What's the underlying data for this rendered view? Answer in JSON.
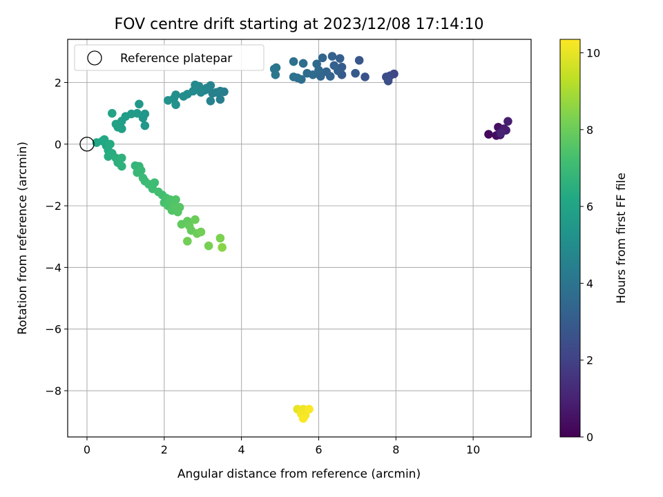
{
  "chart_data": {
    "type": "scatter",
    "title": "FOV centre drift starting at 2023/12/08 17:14:10",
    "xlabel": "Angular distance from reference (arcmin)",
    "ylabel": "Rotation from reference (arcmin)",
    "xlim": [
      -0.5,
      11.5
    ],
    "ylim": [
      -9.5,
      3.4
    ],
    "xticks": [
      0,
      2,
      4,
      6,
      8,
      10
    ],
    "yticks": [
      -8,
      -6,
      -4,
      -2,
      0,
      2
    ],
    "grid": true,
    "legend": {
      "placement": "upper-left",
      "entries": [
        "Reference platepar"
      ]
    },
    "reference_point": {
      "x": 0,
      "y": 0
    },
    "colorbar": {
      "label": "Hours from first FF file",
      "colormap": "viridis",
      "range": [
        0,
        10.35
      ],
      "ticks": [
        0,
        2,
        4,
        6,
        8,
        10
      ]
    },
    "series": [
      {
        "points": [
          {
            "x": 10.4,
            "y": 0.32,
            "c": 0.2
          },
          {
            "x": 10.6,
            "y": 0.28,
            "c": 0.3
          },
          {
            "x": 10.65,
            "y": 0.55,
            "c": 0.4
          },
          {
            "x": 10.7,
            "y": 0.3,
            "c": 0.5
          },
          {
            "x": 10.75,
            "y": 0.42,
            "c": 0.6
          },
          {
            "x": 10.8,
            "y": 0.5,
            "c": 0.7
          },
          {
            "x": 10.85,
            "y": 0.45,
            "c": 0.8
          },
          {
            "x": 10.9,
            "y": 0.74,
            "c": 0.9
          },
          {
            "x": 10.72,
            "y": 0.36,
            "c": 1.0
          },
          {
            "x": 7.95,
            "y": 2.28,
            "c": 2.2
          },
          {
            "x": 7.85,
            "y": 2.22,
            "c": 2.3
          },
          {
            "x": 7.75,
            "y": 2.18,
            "c": 2.4
          },
          {
            "x": 7.8,
            "y": 2.05,
            "c": 2.5
          },
          {
            "x": 7.2,
            "y": 2.18,
            "c": 2.7
          },
          {
            "x": 7.05,
            "y": 2.72,
            "c": 2.8
          },
          {
            "x": 6.95,
            "y": 2.3,
            "c": 2.9
          },
          {
            "x": 6.6,
            "y": 2.25,
            "c": 3.0
          },
          {
            "x": 6.6,
            "y": 2.5,
            "c": 3.0
          },
          {
            "x": 6.55,
            "y": 2.78,
            "c": 3.1
          },
          {
            "x": 6.5,
            "y": 2.38,
            "c": 3.1
          },
          {
            "x": 6.4,
            "y": 2.55,
            "c": 3.2
          },
          {
            "x": 6.35,
            "y": 2.85,
            "c": 3.2
          },
          {
            "x": 6.3,
            "y": 2.2,
            "c": 3.3
          },
          {
            "x": 6.2,
            "y": 2.35,
            "c": 3.3
          },
          {
            "x": 6.1,
            "y": 2.8,
            "c": 3.4
          },
          {
            "x": 6.05,
            "y": 2.2,
            "c": 3.4
          },
          {
            "x": 6.0,
            "y": 2.4,
            "c": 3.5
          },
          {
            "x": 5.95,
            "y": 2.6,
            "c": 3.5
          },
          {
            "x": 5.85,
            "y": 2.25,
            "c": 3.6
          },
          {
            "x": 5.7,
            "y": 2.3,
            "c": 3.6
          },
          {
            "x": 5.6,
            "y": 2.62,
            "c": 3.7
          },
          {
            "x": 5.55,
            "y": 2.1,
            "c": 3.7
          },
          {
            "x": 5.45,
            "y": 2.15,
            "c": 3.8
          },
          {
            "x": 5.35,
            "y": 2.68,
            "c": 3.8
          },
          {
            "x": 5.35,
            "y": 2.18,
            "c": 3.9
          },
          {
            "x": 4.9,
            "y": 2.48,
            "c": 4.0
          },
          {
            "x": 4.85,
            "y": 2.44,
            "c": 4.0
          },
          {
            "x": 4.88,
            "y": 2.25,
            "c": 4.1
          },
          {
            "x": 3.55,
            "y": 1.7,
            "c": 4.3
          },
          {
            "x": 3.45,
            "y": 1.72,
            "c": 4.4
          },
          {
            "x": 3.45,
            "y": 1.45,
            "c": 4.4
          },
          {
            "x": 3.35,
            "y": 1.68,
            "c": 4.5
          },
          {
            "x": 3.25,
            "y": 1.65,
            "c": 4.5
          },
          {
            "x": 3.2,
            "y": 1.9,
            "c": 4.6
          },
          {
            "x": 3.2,
            "y": 1.4,
            "c": 4.6
          },
          {
            "x": 3.1,
            "y": 1.82,
            "c": 4.7
          },
          {
            "x": 3.05,
            "y": 1.75,
            "c": 4.7
          },
          {
            "x": 2.95,
            "y": 1.68,
            "c": 4.8
          },
          {
            "x": 2.9,
            "y": 1.88,
            "c": 4.8
          },
          {
            "x": 2.8,
            "y": 1.92,
            "c": 4.9
          },
          {
            "x": 2.75,
            "y": 1.72,
            "c": 4.9
          },
          {
            "x": 2.6,
            "y": 1.62,
            "c": 5.0
          },
          {
            "x": 2.5,
            "y": 1.55,
            "c": 5.0
          },
          {
            "x": 2.3,
            "y": 1.6,
            "c": 5.1
          },
          {
            "x": 2.25,
            "y": 1.48,
            "c": 5.1
          },
          {
            "x": 2.3,
            "y": 1.28,
            "c": 5.2
          },
          {
            "x": 2.1,
            "y": 1.42,
            "c": 5.2
          },
          {
            "x": 1.5,
            "y": 0.98,
            "c": 5.4
          },
          {
            "x": 1.45,
            "y": 0.85,
            "c": 5.4
          },
          {
            "x": 1.5,
            "y": 0.6,
            "c": 5.5
          },
          {
            "x": 1.35,
            "y": 1.3,
            "c": 5.5
          },
          {
            "x": 1.3,
            "y": 1.0,
            "c": 5.6
          },
          {
            "x": 1.15,
            "y": 0.98,
            "c": 5.6
          },
          {
            "x": 1.0,
            "y": 0.9,
            "c": 5.7
          },
          {
            "x": 0.9,
            "y": 0.75,
            "c": 5.7
          },
          {
            "x": 0.85,
            "y": 0.62,
            "c": 5.8
          },
          {
            "x": 0.9,
            "y": 0.5,
            "c": 5.8
          },
          {
            "x": 0.8,
            "y": 0.55,
            "c": 5.9
          },
          {
            "x": 0.75,
            "y": 0.65,
            "c": 5.9
          },
          {
            "x": 0.65,
            "y": 1.0,
            "c": 6.0
          },
          {
            "x": 0.25,
            "y": 0.05,
            "c": 6.1
          },
          {
            "x": 0.4,
            "y": 0.1,
            "c": 6.1
          },
          {
            "x": 0.45,
            "y": 0.15,
            "c": 6.2
          },
          {
            "x": 0.5,
            "y": -0.05,
            "c": 6.2
          },
          {
            "x": 0.55,
            "y": -0.2,
            "c": 6.3
          },
          {
            "x": 0.6,
            "y": 0.0,
            "c": 6.3
          },
          {
            "x": 0.55,
            "y": -0.4,
            "c": 6.4
          },
          {
            "x": 0.65,
            "y": -0.3,
            "c": 6.4
          },
          {
            "x": 0.75,
            "y": -0.45,
            "c": 6.5
          },
          {
            "x": 0.8,
            "y": -0.6,
            "c": 6.5
          },
          {
            "x": 0.9,
            "y": -0.45,
            "c": 6.6
          },
          {
            "x": 0.9,
            "y": -0.72,
            "c": 6.6
          },
          {
            "x": 1.25,
            "y": -0.7,
            "c": 6.8
          },
          {
            "x": 1.35,
            "y": -0.72,
            "c": 6.8
          },
          {
            "x": 1.3,
            "y": -0.92,
            "c": 6.9
          },
          {
            "x": 1.4,
            "y": -0.85,
            "c": 6.9
          },
          {
            "x": 1.45,
            "y": -1.1,
            "c": 7.0
          },
          {
            "x": 1.5,
            "y": -1.2,
            "c": 7.0
          },
          {
            "x": 1.6,
            "y": -1.3,
            "c": 7.1
          },
          {
            "x": 1.7,
            "y": -1.45,
            "c": 7.1
          },
          {
            "x": 1.75,
            "y": -1.25,
            "c": 7.1
          },
          {
            "x": 1.85,
            "y": -1.55,
            "c": 7.2
          },
          {
            "x": 1.95,
            "y": -1.65,
            "c": 7.2
          },
          {
            "x": 2.0,
            "y": -1.9,
            "c": 7.3
          },
          {
            "x": 2.05,
            "y": -1.75,
            "c": 7.3
          },
          {
            "x": 2.1,
            "y": -2.0,
            "c": 7.4
          },
          {
            "x": 2.15,
            "y": -1.8,
            "c": 7.4
          },
          {
            "x": 2.2,
            "y": -2.15,
            "c": 7.5
          },
          {
            "x": 2.25,
            "y": -1.95,
            "c": 7.5
          },
          {
            "x": 2.3,
            "y": -1.8,
            "c": 7.5
          },
          {
            "x": 2.3,
            "y": -2.05,
            "c": 7.6
          },
          {
            "x": 2.35,
            "y": -2.2,
            "c": 7.6
          },
          {
            "x": 2.4,
            "y": -2.05,
            "c": 7.6
          },
          {
            "x": 2.45,
            "y": -2.6,
            "c": 7.8
          },
          {
            "x": 2.6,
            "y": -2.5,
            "c": 7.8
          },
          {
            "x": 2.65,
            "y": -2.65,
            "c": 7.9
          },
          {
            "x": 2.7,
            "y": -2.8,
            "c": 7.9
          },
          {
            "x": 2.8,
            "y": -2.45,
            "c": 8.0
          },
          {
            "x": 2.85,
            "y": -2.9,
            "c": 8.0
          },
          {
            "x": 2.95,
            "y": -2.85,
            "c": 8.1
          },
          {
            "x": 2.6,
            "y": -3.15,
            "c": 8.1
          },
          {
            "x": 3.15,
            "y": -3.3,
            "c": 8.2
          },
          {
            "x": 3.45,
            "y": -3.05,
            "c": 8.3
          },
          {
            "x": 3.5,
            "y": -3.35,
            "c": 8.5
          },
          {
            "x": 5.45,
            "y": -8.6,
            "c": 10.0
          },
          {
            "x": 5.55,
            "y": -8.65,
            "c": 10.1
          },
          {
            "x": 5.6,
            "y": -8.6,
            "c": 10.1
          },
          {
            "x": 5.65,
            "y": -8.8,
            "c": 10.2
          },
          {
            "x": 5.55,
            "y": -8.75,
            "c": 10.2
          },
          {
            "x": 5.75,
            "y": -8.6,
            "c": 10.3
          },
          {
            "x": 5.6,
            "y": -8.9,
            "c": 10.3
          }
        ]
      }
    ]
  },
  "colors": {
    "axis": "#000000",
    "grid": "#b0b0b0",
    "legend_border": "#cccccc",
    "background": "#ffffff"
  }
}
